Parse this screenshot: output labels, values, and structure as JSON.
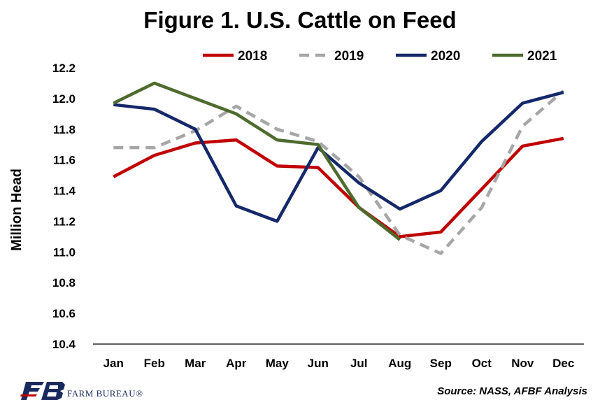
{
  "chart_data": {
    "type": "line",
    "title": "Figure 1. U.S. Cattle on Feed",
    "xlabel": "",
    "ylabel": "Million Head",
    "categories": [
      "Jan",
      "Feb",
      "Mar",
      "Apr",
      "May",
      "Jun",
      "Jul",
      "Aug",
      "Sep",
      "Oct",
      "Nov",
      "Dec"
    ],
    "ylim": [
      10.4,
      12.2
    ],
    "yticks": [
      "10.4",
      "10.6",
      "10.8",
      "11.0",
      "11.2",
      "11.4",
      "11.6",
      "11.8",
      "12.0",
      "12.2"
    ],
    "grid": false,
    "legend_position": "top",
    "series": [
      {
        "name": "2018",
        "color": "#c00000",
        "dash": "solid",
        "values": [
          11.49,
          11.63,
          11.71,
          11.73,
          11.56,
          11.55,
          11.29,
          11.1,
          11.13,
          11.41,
          11.69,
          11.74
        ]
      },
      {
        "name": "2019",
        "color": "#a6a6a6",
        "dash": "dashed",
        "values": [
          11.68,
          11.68,
          11.79,
          11.95,
          11.8,
          11.72,
          11.49,
          11.11,
          10.99,
          11.29,
          11.82,
          12.05
        ]
      },
      {
        "name": "2020",
        "color": "#14286a",
        "dash": "solid",
        "values": [
          11.96,
          11.93,
          11.8,
          11.3,
          11.2,
          11.68,
          11.45,
          11.28,
          11.4,
          11.72,
          11.97,
          12.04
        ]
      },
      {
        "name": "2021",
        "color": "#4e6b2e",
        "dash": "solid",
        "values": [
          11.97,
          12.1,
          12.0,
          11.9,
          11.73,
          11.7,
          11.29,
          11.08,
          null,
          null,
          null,
          null
        ]
      }
    ]
  },
  "footer": {
    "brand": "FARM BUREAU®",
    "source": "Source: NASS, AFBF Analysis"
  }
}
